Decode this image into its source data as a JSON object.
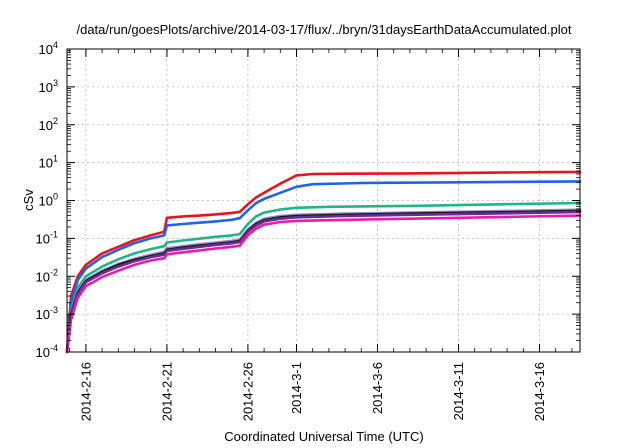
{
  "chart_data": {
    "type": "line",
    "title": "/data/run/goesPlots/archive/2014-03-17/flux/../bryn/31daysEarthDataAccumulated.plot",
    "xlabel": "Coordinated Universal Time (UTC)",
    "ylabel": "cSv",
    "y_scale": "log",
    "ylim": [
      0.0001,
      10000
    ],
    "xlim": [
      "2014-02-14T20:00",
      "2014-03-18T12:00"
    ],
    "x_ticks": [
      {
        "date": "2014-02-16",
        "label": "2014-2-16"
      },
      {
        "date": "2014-02-21",
        "label": "2014-2-21"
      },
      {
        "date": "2014-02-26",
        "label": "2014-2-26"
      },
      {
        "date": "2014-03-01",
        "label": "2014-3-1"
      },
      {
        "date": "2014-03-06",
        "label": "2014-3-6"
      },
      {
        "date": "2014-03-11",
        "label": "2014-3-11"
      },
      {
        "date": "2014-03-16",
        "label": "2014-3-16"
      }
    ],
    "y_ticks": [
      {
        "value": 0.0001,
        "base": "10",
        "exp": "-4"
      },
      {
        "value": 0.001,
        "base": "10",
        "exp": "-3"
      },
      {
        "value": 0.01,
        "base": "10",
        "exp": "-2"
      },
      {
        "value": 0.1,
        "base": "10",
        "exp": "-1"
      },
      {
        "value": 1,
        "base": "10",
        "exp": "0"
      },
      {
        "value": 10,
        "base": "10",
        "exp": "1"
      },
      {
        "value": 100,
        "base": "10",
        "exp": "2"
      },
      {
        "value": 1000,
        "base": "10",
        "exp": "3"
      },
      {
        "value": 10000,
        "base": "10",
        "exp": "4"
      }
    ],
    "grid": true,
    "series": [
      {
        "color": "#e8141c",
        "values": [
          [
            "2014-02-14T20:00",
            0.0001
          ],
          [
            "2014-02-15T02:00",
            0.003
          ],
          [
            "2014-02-15T12:00",
            0.01
          ],
          [
            "2014-02-16T00:00",
            0.02
          ],
          [
            "2014-02-17T00:00",
            0.04
          ],
          [
            "2014-02-18T00:00",
            0.06
          ],
          [
            "2014-02-19T00:00",
            0.09
          ],
          [
            "2014-02-20T00:00",
            0.12
          ],
          [
            "2014-02-20T20:00",
            0.15
          ],
          [
            "2014-02-21T00:00",
            0.35
          ],
          [
            "2014-02-22T00:00",
            0.38
          ],
          [
            "2014-02-23T00:00",
            0.4
          ],
          [
            "2014-02-24T00:00",
            0.43
          ],
          [
            "2014-02-25T00:00",
            0.47
          ],
          [
            "2014-02-25T12:00",
            0.5
          ],
          [
            "2014-02-26T00:00",
            0.8
          ],
          [
            "2014-02-26T12:00",
            1.2
          ],
          [
            "2014-02-27T00:00",
            1.6
          ],
          [
            "2014-02-28T00:00",
            2.8
          ],
          [
            "2014-03-01T00:00",
            4.6
          ],
          [
            "2014-03-02T00:00",
            5.0
          ],
          [
            "2014-03-04T00:00",
            5.1
          ],
          [
            "2014-03-08T00:00",
            5.2
          ],
          [
            "2014-03-12T00:00",
            5.4
          ],
          [
            "2014-03-16T00:00",
            5.6
          ],
          [
            "2014-03-18T12:00",
            5.7
          ]
        ]
      },
      {
        "color": "#1f64e8",
        "values": [
          [
            "2014-02-14T20:00",
            0.0001
          ],
          [
            "2014-02-15T02:00",
            0.002
          ],
          [
            "2014-02-15T12:00",
            0.008
          ],
          [
            "2014-02-16T00:00",
            0.016
          ],
          [
            "2014-02-17T00:00",
            0.032
          ],
          [
            "2014-02-18T00:00",
            0.05
          ],
          [
            "2014-02-19T00:00",
            0.075
          ],
          [
            "2014-02-20T00:00",
            0.1
          ],
          [
            "2014-02-20T20:00",
            0.12
          ],
          [
            "2014-02-21T00:00",
            0.22
          ],
          [
            "2014-02-22T00:00",
            0.24
          ],
          [
            "2014-02-23T00:00",
            0.26
          ],
          [
            "2014-02-24T00:00",
            0.28
          ],
          [
            "2014-02-25T00:00",
            0.31
          ],
          [
            "2014-02-25T12:00",
            0.34
          ],
          [
            "2014-02-26T00:00",
            0.55
          ],
          [
            "2014-02-26T12:00",
            0.85
          ],
          [
            "2014-02-27T00:00",
            1.1
          ],
          [
            "2014-02-28T00:00",
            1.6
          ],
          [
            "2014-03-01T00:00",
            2.3
          ],
          [
            "2014-03-02T00:00",
            2.7
          ],
          [
            "2014-03-05T00:00",
            2.9
          ],
          [
            "2014-03-10T00:00",
            3.0
          ],
          [
            "2014-03-14T00:00",
            3.1
          ],
          [
            "2014-03-18T12:00",
            3.2
          ]
        ]
      },
      {
        "color": "#1cb68a",
        "values": [
          [
            "2014-02-14T20:00",
            0.0001
          ],
          [
            "2014-02-15T02:00",
            0.0012
          ],
          [
            "2014-02-15T12:00",
            0.005
          ],
          [
            "2014-02-16T00:00",
            0.01
          ],
          [
            "2014-02-17T00:00",
            0.018
          ],
          [
            "2014-02-18T00:00",
            0.028
          ],
          [
            "2014-02-19T00:00",
            0.04
          ],
          [
            "2014-02-20T00:00",
            0.052
          ],
          [
            "2014-02-20T20:00",
            0.062
          ],
          [
            "2014-02-21T00:00",
            0.078
          ],
          [
            "2014-02-22T00:00",
            0.088
          ],
          [
            "2014-02-23T00:00",
            0.098
          ],
          [
            "2014-02-24T00:00",
            0.11
          ],
          [
            "2014-02-25T00:00",
            0.12
          ],
          [
            "2014-02-25T12:00",
            0.13
          ],
          [
            "2014-02-26T00:00",
            0.24
          ],
          [
            "2014-02-26T12:00",
            0.38
          ],
          [
            "2014-02-27T00:00",
            0.48
          ],
          [
            "2014-02-28T00:00",
            0.58
          ],
          [
            "2014-03-01T00:00",
            0.64
          ],
          [
            "2014-03-03T00:00",
            0.68
          ],
          [
            "2014-03-08T00:00",
            0.72
          ],
          [
            "2014-03-14T00:00",
            0.8
          ],
          [
            "2014-03-18T12:00",
            0.86
          ]
        ]
      },
      {
        "color": "#9090c0",
        "values": [
          [
            "2014-02-14T20:00",
            0.0001
          ],
          [
            "2014-02-15T02:00",
            0.001
          ],
          [
            "2014-02-15T12:00",
            0.004
          ],
          [
            "2014-02-16T00:00",
            0.008
          ],
          [
            "2014-02-17T00:00",
            0.014
          ],
          [
            "2014-02-18T00:00",
            0.021
          ],
          [
            "2014-02-19T00:00",
            0.029
          ],
          [
            "2014-02-20T00:00",
            0.037
          ],
          [
            "2014-02-20T20:00",
            0.044
          ],
          [
            "2014-02-21T00:00",
            0.055
          ],
          [
            "2014-02-22T00:00",
            0.062
          ],
          [
            "2014-02-23T00:00",
            0.07
          ],
          [
            "2014-02-24T00:00",
            0.078
          ],
          [
            "2014-02-25T00:00",
            0.086
          ],
          [
            "2014-02-25T12:00",
            0.092
          ],
          [
            "2014-02-26T00:00",
            0.17
          ],
          [
            "2014-02-26T12:00",
            0.26
          ],
          [
            "2014-02-27T00:00",
            0.33
          ],
          [
            "2014-02-28T00:00",
            0.39
          ],
          [
            "2014-03-01T00:00",
            0.42
          ],
          [
            "2014-03-04T00:00",
            0.45
          ],
          [
            "2014-03-08T00:00",
            0.48
          ],
          [
            "2014-03-14T00:00",
            0.53
          ],
          [
            "2014-03-18T12:00",
            0.57
          ]
        ]
      },
      {
        "color": "#1a1a1a",
        "values": [
          [
            "2014-02-14T20:00",
            0.0001
          ],
          [
            "2014-02-15T02:00",
            0.001
          ],
          [
            "2014-02-15T12:00",
            0.0037
          ],
          [
            "2014-02-16T00:00",
            0.0075
          ],
          [
            "2014-02-17T00:00",
            0.013
          ],
          [
            "2014-02-18T00:00",
            0.02
          ],
          [
            "2014-02-19T00:00",
            0.027
          ],
          [
            "2014-02-20T00:00",
            0.034
          ],
          [
            "2014-02-20T20:00",
            0.04
          ],
          [
            "2014-02-21T00:00",
            0.05
          ],
          [
            "2014-02-22T00:00",
            0.057
          ],
          [
            "2014-02-23T00:00",
            0.064
          ],
          [
            "2014-02-24T00:00",
            0.071
          ],
          [
            "2014-02-25T00:00",
            0.079
          ],
          [
            "2014-02-25T12:00",
            0.085
          ],
          [
            "2014-02-26T00:00",
            0.16
          ],
          [
            "2014-02-26T12:00",
            0.24
          ],
          [
            "2014-02-27T00:00",
            0.3
          ],
          [
            "2014-02-28T00:00",
            0.36
          ],
          [
            "2014-03-01T00:00",
            0.39
          ],
          [
            "2014-03-04T00:00",
            0.42
          ],
          [
            "2014-03-08T00:00",
            0.45
          ],
          [
            "2014-03-14T00:00",
            0.49
          ],
          [
            "2014-03-18T12:00",
            0.53
          ]
        ]
      },
      {
        "color": "#6a2a9a",
        "values": [
          [
            "2014-02-14T20:00",
            0.0001
          ],
          [
            "2014-02-15T02:00",
            0.0009
          ],
          [
            "2014-02-15T12:00",
            0.0034
          ],
          [
            "2014-02-16T00:00",
            0.007
          ],
          [
            "2014-02-17T00:00",
            0.012
          ],
          [
            "2014-02-18T00:00",
            0.018
          ],
          [
            "2014-02-19T00:00",
            0.025
          ],
          [
            "2014-02-20T00:00",
            0.032
          ],
          [
            "2014-02-20T20:00",
            0.037
          ],
          [
            "2014-02-21T00:00",
            0.047
          ],
          [
            "2014-02-22T00:00",
            0.053
          ],
          [
            "2014-02-23T00:00",
            0.06
          ],
          [
            "2014-02-24T00:00",
            0.067
          ],
          [
            "2014-02-25T00:00",
            0.074
          ],
          [
            "2014-02-25T12:00",
            0.08
          ],
          [
            "2014-02-26T00:00",
            0.15
          ],
          [
            "2014-02-26T12:00",
            0.22
          ],
          [
            "2014-02-27T00:00",
            0.28
          ],
          [
            "2014-02-28T00:00",
            0.33
          ],
          [
            "2014-03-01T00:00",
            0.36
          ],
          [
            "2014-03-04T00:00",
            0.39
          ],
          [
            "2014-03-08T00:00",
            0.42
          ],
          [
            "2014-03-14T00:00",
            0.46
          ],
          [
            "2014-03-18T12:00",
            0.5
          ]
        ]
      },
      {
        "color": "#e81ca8",
        "values": [
          [
            "2014-02-14T20:00",
            0.0001
          ],
          [
            "2014-02-15T02:00",
            0.0007
          ],
          [
            "2014-02-15T12:00",
            0.0027
          ],
          [
            "2014-02-16T00:00",
            0.0055
          ],
          [
            "2014-02-17T00:00",
            0.0095
          ],
          [
            "2014-02-18T00:00",
            0.014
          ],
          [
            "2014-02-19T00:00",
            0.02
          ],
          [
            "2014-02-20T00:00",
            0.026
          ],
          [
            "2014-02-20T20:00",
            0.03
          ],
          [
            "2014-02-21T00:00",
            0.038
          ],
          [
            "2014-02-22T00:00",
            0.043
          ],
          [
            "2014-02-23T00:00",
            0.048
          ],
          [
            "2014-02-24T00:00",
            0.054
          ],
          [
            "2014-02-25T00:00",
            0.06
          ],
          [
            "2014-02-25T12:00",
            0.064
          ],
          [
            "2014-02-26T00:00",
            0.12
          ],
          [
            "2014-02-26T12:00",
            0.18
          ],
          [
            "2014-02-27T00:00",
            0.23
          ],
          [
            "2014-02-28T00:00",
            0.27
          ],
          [
            "2014-03-01T00:00",
            0.29
          ],
          [
            "2014-03-04T00:00",
            0.31
          ],
          [
            "2014-03-08T00:00",
            0.33
          ],
          [
            "2014-03-14T00:00",
            0.37
          ],
          [
            "2014-03-18T12:00",
            0.4
          ]
        ]
      }
    ]
  }
}
